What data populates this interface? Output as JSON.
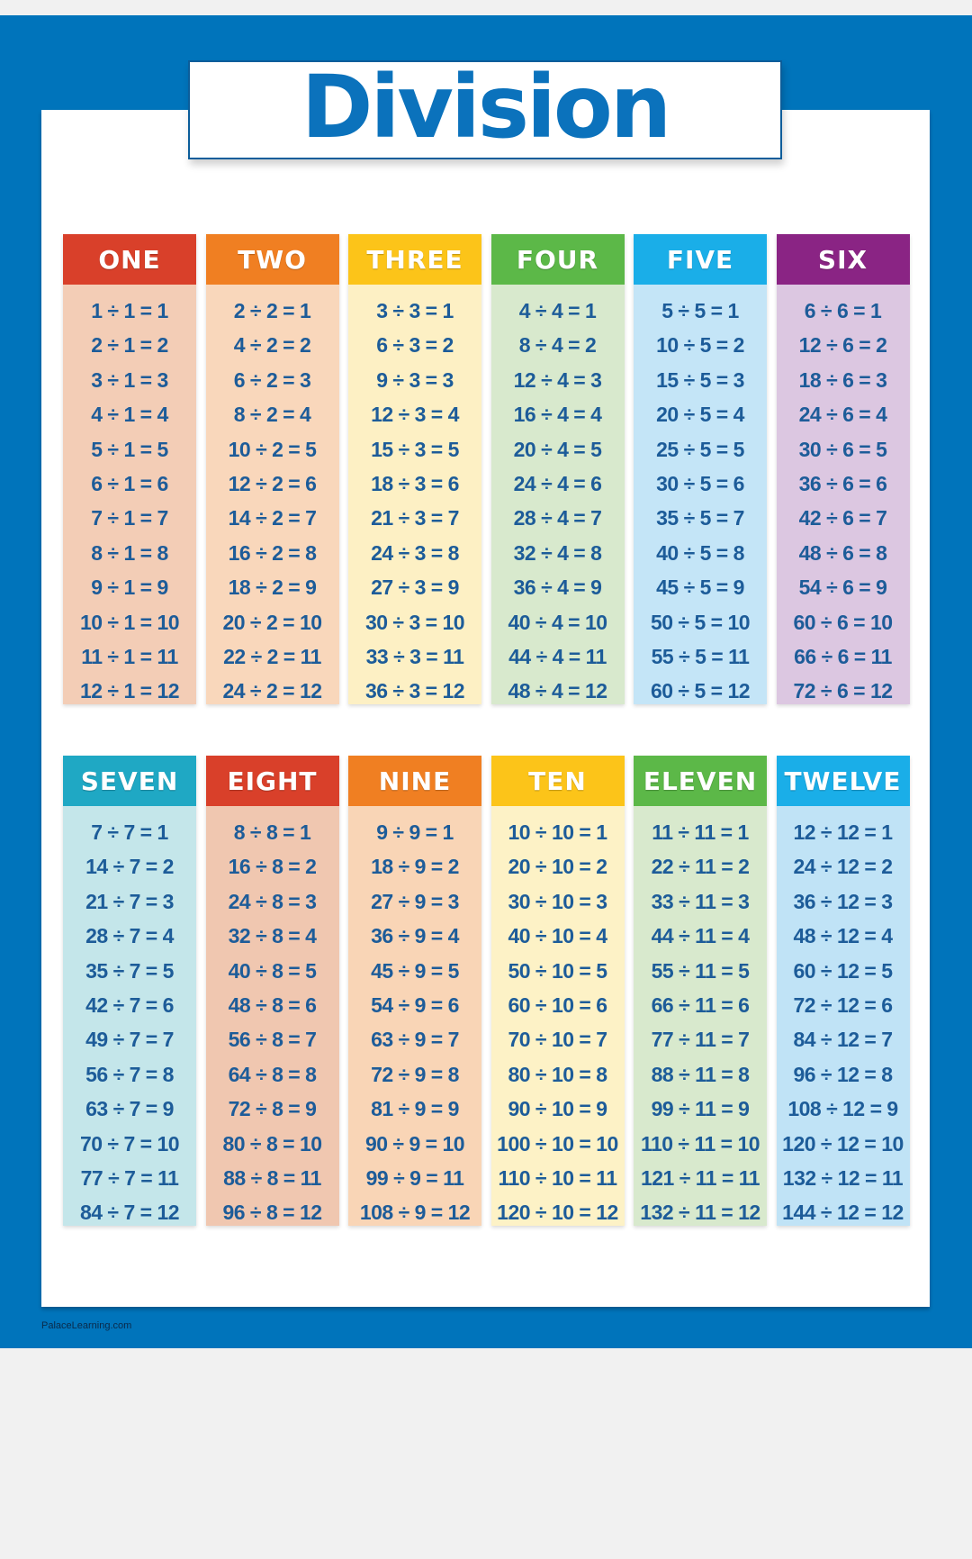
{
  "title": "Division",
  "credit": "PalaceLearning.com",
  "colors": {
    "poster_blue": "#0074bb",
    "text_blue": "#1d5c99",
    "background": "#f1f1f1"
  },
  "tables": [
    {
      "title": "ONE",
      "color": "#d9402a",
      "body_color": "#f3cdb6",
      "rows": [
        "1 ÷ 1 = 1",
        "2 ÷ 1 = 2",
        "3 ÷ 1 = 3",
        "4 ÷ 1 = 4",
        "5 ÷ 1 = 5",
        "6 ÷ 1 = 6",
        "7 ÷ 1 = 7",
        "8 ÷ 1 = 8",
        "9 ÷ 1 = 9",
        "10 ÷ 1 = 10",
        "11 ÷ 1 = 11",
        "12 ÷ 1 = 12"
      ]
    },
    {
      "title": "TWO",
      "color": "#f07f22",
      "body_color": "#f9d7bb",
      "rows": [
        "2 ÷ 2 = 1",
        "4 ÷ 2 = 2",
        "6 ÷ 2 = 3",
        "8 ÷ 2 = 4",
        "10 ÷ 2 = 5",
        "12 ÷ 2 = 6",
        "14 ÷ 2 = 7",
        "16 ÷ 2 = 8",
        "18 ÷ 2 = 9",
        "20 ÷ 2 = 10",
        "22 ÷ 2 = 11",
        "24 ÷ 2 = 12"
      ]
    },
    {
      "title": "THREE",
      "color": "#fcc419",
      "body_color": "#fdf0c4",
      "rows": [
        "3 ÷ 3 = 1",
        "6 ÷ 3 = 2",
        "9 ÷ 3 = 3",
        "12 ÷ 3 = 4",
        "15 ÷ 3 = 5",
        "18 ÷ 3 = 6",
        "21 ÷ 3 = 7",
        "24 ÷ 3 = 8",
        "27 ÷ 3 = 9",
        "30 ÷ 3 = 10",
        "33 ÷ 3 = 11",
        "36 ÷ 3 = 12"
      ]
    },
    {
      "title": "FOUR",
      "color": "#5cb848",
      "body_color": "#d8e9cd",
      "rows": [
        "4 ÷ 4 = 1",
        "8 ÷ 4 = 2",
        "12 ÷ 4 = 3",
        "16 ÷ 4 = 4",
        "20 ÷ 4 = 5",
        "24 ÷ 4 = 6",
        "28 ÷ 4 = 7",
        "32 ÷ 4 = 8",
        "36 ÷ 4 = 9",
        "40 ÷ 4 = 10",
        "44 ÷ 4 = 11",
        "48 ÷ 4 = 12"
      ]
    },
    {
      "title": "FIVE",
      "color": "#1aaee8",
      "body_color": "#c4e5f7",
      "rows": [
        "5 ÷ 5 = 1",
        "10 ÷ 5 = 2",
        "15 ÷ 5 = 3",
        "20 ÷ 5 = 4",
        "25 ÷ 5 = 5",
        "30 ÷ 5 = 6",
        "35 ÷ 5 = 7",
        "40 ÷ 5 = 8",
        "45 ÷ 5 = 9",
        "50 ÷ 5 = 10",
        "55 ÷ 5 = 11",
        "60 ÷ 5 = 12"
      ]
    },
    {
      "title": "SIX",
      "color": "#8a2484",
      "body_color": "#dcc7e1",
      "rows": [
        "6 ÷ 6 = 1",
        "12 ÷ 6 = 2",
        "18 ÷ 6 = 3",
        "24 ÷ 6 = 4",
        "30 ÷ 6 = 5",
        "36 ÷ 6 = 6",
        "42 ÷ 6 = 7",
        "48 ÷ 6 = 8",
        "54 ÷ 6 = 9",
        "60 ÷ 6 = 10",
        "66 ÷ 6 = 11",
        "72 ÷ 6 = 12"
      ]
    },
    {
      "title": "SEVEN",
      "color": "#1fa8c4",
      "body_color": "#c4e6ea",
      "rows": [
        "7 ÷ 7 = 1",
        "14 ÷ 7 = 2",
        "21 ÷ 7 = 3",
        "28 ÷ 7 = 4",
        "35 ÷ 7 = 5",
        "42 ÷ 7 = 6",
        "49 ÷ 7 = 7",
        "56 ÷ 7 = 8",
        "63 ÷ 7 = 9",
        "70 ÷ 7 = 10",
        "77 ÷ 7 = 11",
        "84 ÷ 7 = 12"
      ]
    },
    {
      "title": "EIGHT",
      "color": "#d9402a",
      "body_color": "#f0c7b0",
      "rows": [
        "8 ÷ 8 = 1",
        "16 ÷ 8 = 2",
        "24 ÷ 8 = 3",
        "32 ÷ 8 = 4",
        "40 ÷ 8 = 5",
        "48 ÷ 8 = 6",
        "56 ÷ 8 = 7",
        "64 ÷ 8 = 8",
        "72 ÷ 8 = 9",
        "80 ÷ 8 = 10",
        "88 ÷ 8 = 11",
        "96 ÷ 8 = 12"
      ]
    },
    {
      "title": "NINE",
      "color": "#f07f22",
      "body_color": "#f9d5b6",
      "rows": [
        "9 ÷ 9 = 1",
        "18 ÷ 9 = 2",
        "27 ÷ 9 = 3",
        "36 ÷ 9 = 4",
        "45 ÷ 9 = 5",
        "54 ÷ 9 = 6",
        "63 ÷ 9 = 7",
        "72 ÷ 9 = 8",
        "81 ÷ 9 = 9",
        "90 ÷ 9 = 10",
        "99 ÷ 9 = 11",
        "108 ÷ 9 = 12"
      ]
    },
    {
      "title": "TEN",
      "color": "#fcc419",
      "body_color": "#fdf2c6",
      "rows": [
        "10 ÷ 10 = 1",
        "20 ÷ 10 = 2",
        "30 ÷ 10 = 3",
        "40 ÷ 10 = 4",
        "50 ÷ 10 = 5",
        "60 ÷ 10 = 6",
        "70 ÷ 10 = 7",
        "80 ÷ 10 = 8",
        "90 ÷ 10 = 9",
        "100 ÷ 10 = 10",
        "110 ÷ 10 = 11",
        "120 ÷ 10 = 12"
      ]
    },
    {
      "title": "ELEVEN",
      "color": "#5cb848",
      "body_color": "#d8e9cd",
      "rows": [
        "11 ÷ 11 = 1",
        "22 ÷ 11 = 2",
        "33 ÷ 11 = 3",
        "44 ÷ 11 = 4",
        "55 ÷ 11 = 5",
        "66 ÷ 11 = 6",
        "77 ÷ 11 = 7",
        "88 ÷ 11 = 8",
        "99 ÷ 11 = 9",
        "110 ÷ 11 = 10",
        "121 ÷ 11 = 11",
        "132 ÷ 11 = 12"
      ]
    },
    {
      "title": "TWELVE",
      "color": "#1aaee8",
      "body_color": "#c0e3f6",
      "rows": [
        "12 ÷ 12 = 1",
        "24 ÷ 12 = 2",
        "36 ÷ 12 = 3",
        "48 ÷ 12 = 4",
        "60 ÷ 12 = 5",
        "72 ÷ 12 = 6",
        "84 ÷ 12 = 7",
        "96 ÷ 12 = 8",
        "108 ÷ 12 = 9",
        "120 ÷ 12 = 10",
        "132 ÷ 12 = 11",
        "144 ÷ 12 = 12"
      ]
    }
  ]
}
